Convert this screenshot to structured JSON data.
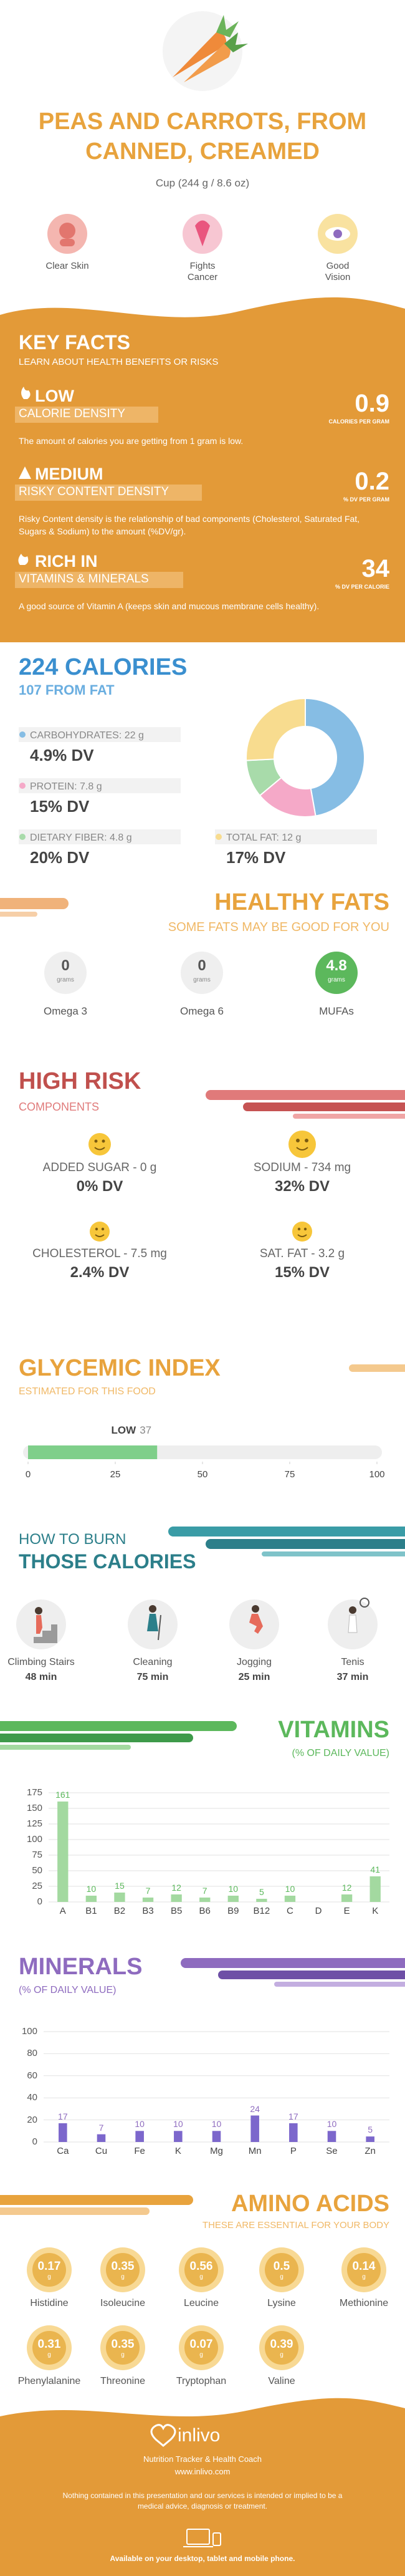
{
  "header": {
    "title": "PEAS AND CARROTS, FROM CANNED, CREAMED",
    "serving": "Cup (244 g / 8.6 oz)",
    "benefits": [
      "Clear Skin",
      "Fights Cancer",
      "Good Vision"
    ]
  },
  "key_facts": {
    "title": "KEY FACTS",
    "subtitle": "LEARN ABOUT HEALTH BENEFITS OR RISKS",
    "facts": [
      {
        "level": "LOW",
        "label": "CALORIE DENSITY",
        "description": "The amount of calories you are getting from 1 gram is low.",
        "value": 0.9,
        "unit": "CALORIES PER GRAM"
      },
      {
        "level": "MEDIUM",
        "label": "RISKY CONTENT DENSITY",
        "description": "Risky Content density is the relationship of bad components (Cholesterol, Saturated Fat, Sugars & Sodium) to the amount (%DV/gr).",
        "value": 0.2,
        "unit": "% DV PER GRAM"
      },
      {
        "level": "RICH IN",
        "label": "VITAMINS & MINERALS",
        "description": "A good source of Vitamin A (keeps skin and mucous membrane cells healthy).",
        "value": 34,
        "unit": "% DV PER CALORIE"
      }
    ]
  },
  "calories": {
    "title": "224 CALORIES",
    "subtitle": "107 FROM FAT",
    "nutrients": [
      {
        "label": "CARBOHYDRATES: 22 g",
        "grams": 22,
        "dv": "4.9% DV",
        "color": "#86bde4"
      },
      {
        "label": "PROTEIN: 7.8 g",
        "grams": 7.8,
        "dv": "15% DV",
        "color": "#f5a9c8"
      },
      {
        "label": "DIETARY FIBER: 4.8 g",
        "grams": 4.8,
        "dv": "20% DV",
        "color": "#a8dbaa"
      },
      {
        "label": "TOTAL FAT: 12 g",
        "grams": 12,
        "dv": "17% DV",
        "color": "#f8dc8f"
      }
    ]
  },
  "healthy_fats": {
    "title": "HEALTHY FATS",
    "subtitle": "SOME FATS MAY BE GOOD FOR YOU",
    "unit": "grams",
    "items": [
      {
        "name": "Omega 3",
        "value": 0
      },
      {
        "name": "Omega 6",
        "value": 0
      },
      {
        "name": "MUFAs",
        "value": 4.8
      }
    ]
  },
  "high_risk": {
    "title": "HIGH RISK",
    "subtitle": "COMPONENTS",
    "items": [
      {
        "label": "ADDED SUGAR - 0 g",
        "dv": "0% DV"
      },
      {
        "label": "SODIUM - 734 mg",
        "dv": "32% DV"
      },
      {
        "label": "CHOLESTEROL - 7.5 mg",
        "dv": "2.4% DV"
      },
      {
        "label": "SAT. FAT - 3.2 g",
        "dv": "15% DV"
      }
    ]
  },
  "glycemic_index": {
    "title": "GLYCEMIC INDEX",
    "subtitle": "ESTIMATED FOR THIS FOOD",
    "level": "LOW",
    "value": 37,
    "xlim": [
      0,
      100
    ],
    "xticks": [
      0,
      25,
      50,
      75,
      100
    ]
  },
  "burn": {
    "title": "HOW TO BURN",
    "subtitle": "THOSE CALORIES",
    "activities": [
      {
        "name": "Climbing Stairs",
        "time": "48 min"
      },
      {
        "name": "Cleaning",
        "time": "75 min"
      },
      {
        "name": "Jogging",
        "time": "25 min"
      },
      {
        "name": "Tenis",
        "time": "37 min"
      }
    ]
  },
  "vitamins": {
    "type": "bar",
    "title": "VITAMINS",
    "subtitle": "(% OF DAILY VALUE)",
    "color": "#a3d9a0",
    "categories": [
      "A",
      "B1",
      "B2",
      "B3",
      "B5",
      "B6",
      "B9",
      "B12",
      "C",
      "D",
      "E",
      "K"
    ],
    "values": [
      161,
      10,
      15,
      7,
      12,
      7,
      10,
      5,
      10,
      0,
      12,
      41
    ],
    "ylim": [
      0,
      175
    ],
    "yticks": [
      0,
      25,
      50,
      75,
      100,
      125,
      150,
      175
    ]
  },
  "minerals": {
    "type": "bar",
    "title": "MINERALS",
    "subtitle": "(% OF DAILY VALUE)",
    "color": "#7c67cc",
    "categories": [
      "Ca",
      "Cu",
      "Fe",
      "K",
      "Mg",
      "Mn",
      "P",
      "Se",
      "Zn"
    ],
    "values": [
      17,
      7,
      10,
      10,
      10,
      24,
      17,
      10,
      5
    ],
    "ylim": [
      0,
      100
    ],
    "yticks": [
      0,
      20,
      40,
      60,
      80,
      100
    ]
  },
  "amino_acids": {
    "title": "AMINO ACIDS",
    "subtitle": "THESE ARE ESSENTIAL FOR YOUR BODY",
    "unit": "g",
    "items": [
      {
        "name": "Histidine",
        "value": 0.17
      },
      {
        "name": "Isoleucine",
        "value": 0.35
      },
      {
        "name": "Leucine",
        "value": 0.56
      },
      {
        "name": "Lysine",
        "value": 0.5
      },
      {
        "name": "Methionine",
        "value": 0.14
      },
      {
        "name": "Phenylalanine",
        "value": 0.31
      },
      {
        "name": "Threonine",
        "value": 0.35
      },
      {
        "name": "Tryptophan",
        "value": 0.07
      },
      {
        "name": "Valine",
        "value": 0.39
      }
    ]
  },
  "footer": {
    "brand": "inlivo",
    "tagline": "Nutrition Tracker & Health Coach",
    "url": "www.inlivo.com",
    "disclaimer": "Nothing contained in this presentation and our services is intended or implied to be a medical advice, diagnosis or treatment.",
    "availability": "Available on your desktop, tablet and mobile phone."
  }
}
